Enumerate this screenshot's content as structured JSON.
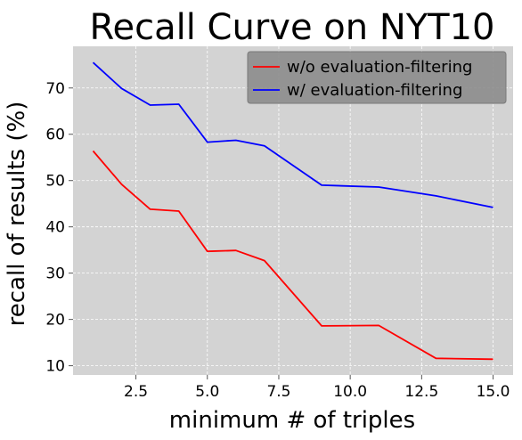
{
  "chart_data": {
    "type": "line",
    "title": "Recall Curve on NYT10",
    "xlabel": "minimum # of triples",
    "ylabel": "recall of results (%)",
    "xlim": [
      0.3,
      15.7
    ],
    "ylim": [
      8,
      79
    ],
    "x_ticks": [
      2.5,
      5.0,
      7.5,
      10.0,
      12.5,
      15.0
    ],
    "x_tick_labels": [
      "2.5",
      "5.0",
      "7.5",
      "10.0",
      "12.5",
      "15.0"
    ],
    "y_ticks": [
      10,
      20,
      30,
      40,
      50,
      60,
      70
    ],
    "y_tick_labels": [
      "10",
      "20",
      "30",
      "40",
      "50",
      "60",
      "70"
    ],
    "grid": true,
    "legend_position": "top-right",
    "series": [
      {
        "name": "w/o evaluation-filtering",
        "color": "#ff0000",
        "x": [
          1,
          2,
          3,
          4,
          5,
          6,
          7,
          9,
          11,
          13,
          15
        ],
        "y": [
          56.4,
          49.2,
          43.8,
          43.4,
          34.7,
          34.9,
          32.7,
          18.6,
          18.7,
          11.6,
          11.4
        ]
      },
      {
        "name": "w/ evaluation-filtering",
        "color": "#0000ff",
        "x": [
          1,
          2,
          3,
          4,
          5,
          6,
          7,
          9,
          11,
          13,
          15
        ],
        "y": [
          75.5,
          69.9,
          66.3,
          66.5,
          58.3,
          58.7,
          57.5,
          49.0,
          48.6,
          46.7,
          44.2
        ]
      }
    ]
  },
  "style": {
    "plot_background": "#d3d3d3",
    "grid_color": "#ffffff",
    "legend_background": "#8c8c8c"
  }
}
